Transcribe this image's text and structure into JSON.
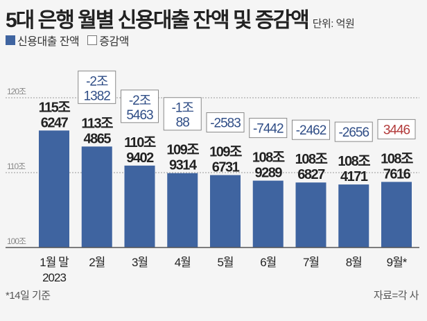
{
  "header": {
    "title": "5대 은행 월별 신용대출 잔액 및 증감액",
    "unit": "단위: 억원"
  },
  "legend": {
    "balance": "신용대출 잔액",
    "change": "증감액"
  },
  "colors": {
    "bar": "#3f64a0",
    "negative": "#2f4d86",
    "positive": "#b23a3a",
    "grid": "#999999"
  },
  "chart_data": {
    "type": "bar",
    "title": "5대 은행 월별 신용대출 잔액 및 증감액",
    "unit": "억원",
    "categories": [
      "1월 말",
      "2월",
      "3월",
      "4월",
      "5월",
      "6월",
      "7월",
      "8월",
      "9월*"
    ],
    "category_sublabels": [
      "2023",
      "",
      "",
      "",
      "",
      "",
      "",
      "",
      ""
    ],
    "values": [
      1156247,
      1134865,
      1109402,
      1099314,
      1096731,
      1089289,
      1086827,
      1084171,
      1087616
    ],
    "value_labels": [
      [
        "115조",
        "6247"
      ],
      [
        "113조",
        "4865"
      ],
      [
        "110조",
        "9402"
      ],
      [
        "109조",
        "9314"
      ],
      [
        "109조",
        "6731"
      ],
      [
        "108조",
        "9289"
      ],
      [
        "108조",
        "6827"
      ],
      [
        "108조",
        "4171"
      ],
      [
        "108조",
        "7616"
      ]
    ],
    "changes": [
      null,
      -21382,
      -25463,
      -10088,
      -2583,
      -7442,
      -2462,
      -2656,
      3446
    ],
    "change_labels": [
      null,
      [
        "-2조",
        "1382"
      ],
      [
        "-2조",
        "5463"
      ],
      [
        "-1조",
        "88"
      ],
      [
        "-2583"
      ],
      [
        "-7442"
      ],
      [
        "-2462"
      ],
      [
        "-2656"
      ],
      [
        "3446"
      ]
    ],
    "yticks": [
      1000000,
      1100000,
      1200000
    ],
    "ytick_labels": [
      "100조",
      "110조",
      "120조"
    ],
    "ylim": [
      1000000,
      1200000
    ],
    "grid": true,
    "legend_position": "top-left"
  },
  "footer": {
    "note": "*14일 기준",
    "source": "자료=각 사"
  }
}
